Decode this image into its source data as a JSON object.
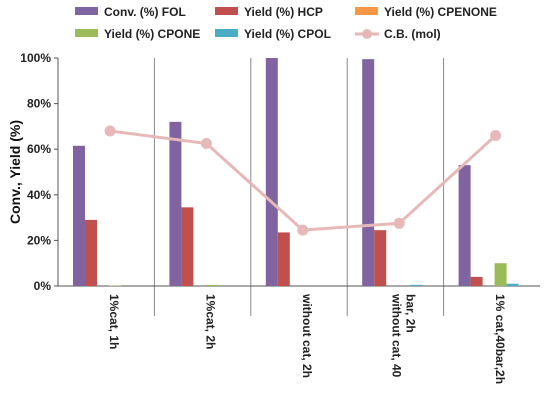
{
  "chart_data": {
    "type": "bar",
    "title": "",
    "xlabel": "",
    "ylabel": "Conv., Yield (%)",
    "ylim": [
      0,
      100
    ],
    "yticks": [
      0,
      20,
      40,
      60,
      80,
      100
    ],
    "ytick_labels": [
      "0%",
      "20%",
      "40%",
      "60%",
      "80%",
      "100%"
    ],
    "grid": false,
    "legend_position": "top",
    "categories": [
      [
        "1%cat, 1h"
      ],
      [
        "1%cat, 2h"
      ],
      [
        "without cat, 2h"
      ],
      [
        "without cat, 40",
        "bar, 2h"
      ],
      [
        "1% cat,40bar,2h"
      ]
    ],
    "series": [
      {
        "name": "Conv. (%) FOL",
        "kind": "bar",
        "color": "#8064a2",
        "values": [
          61.5,
          72,
          100,
          99.5,
          53
        ]
      },
      {
        "name": "Yield (%) HCP",
        "kind": "bar",
        "color": "#c0504d",
        "values": [
          29,
          34.5,
          23.5,
          24.5,
          4
        ]
      },
      {
        "name": "Yield (%) CPENONE",
        "kind": "bar",
        "color": "#f79646",
        "values": [
          0,
          0,
          0,
          0,
          0
        ]
      },
      {
        "name": "Yield (%) CPONE",
        "kind": "bar",
        "color": "#9bbb59",
        "values": [
          0.2,
          0.5,
          0,
          0,
          10
        ]
      },
      {
        "name": "Yield (%) CPOL",
        "kind": "bar",
        "color": "#4bacc6",
        "values": [
          0,
          0,
          0,
          0.5,
          1
        ]
      },
      {
        "name": "C.B. (mol)",
        "kind": "line",
        "color": "#e6b9b8",
        "values": [
          68,
          62.5,
          24.5,
          27.5,
          66
        ]
      }
    ]
  }
}
